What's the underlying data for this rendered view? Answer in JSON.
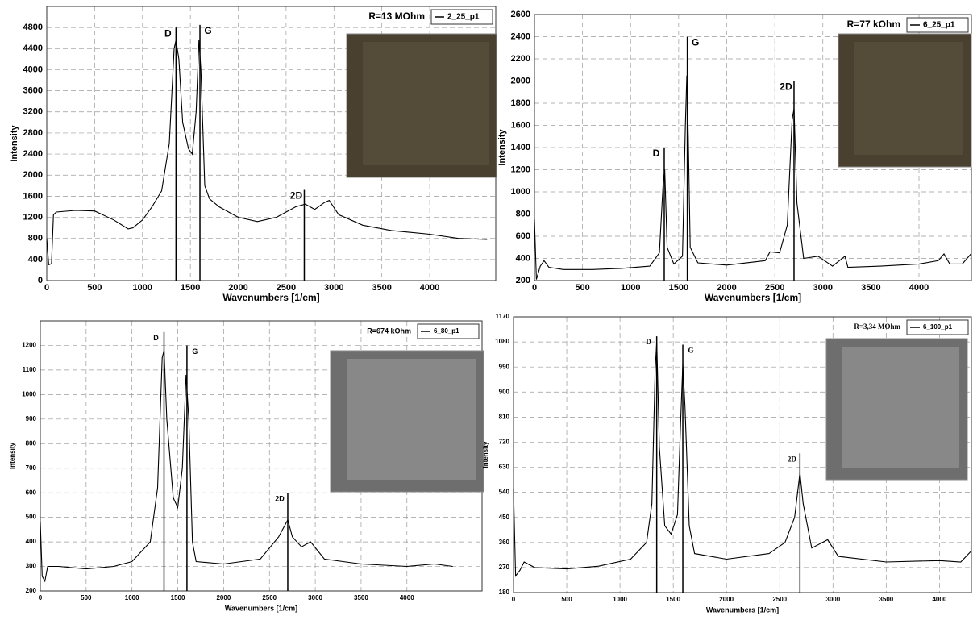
{
  "chart_data": [
    {
      "type": "line",
      "xlabel": "Wavenumbers [1/cm]",
      "ylabel": "Intensity",
      "note": "R=13 MOhm",
      "xlim": [
        0,
        4690
      ],
      "xticks": [
        0,
        500,
        1000,
        1500,
        2000,
        2500,
        3000,
        3500,
        4000
      ],
      "ylim": [
        0,
        5200
      ],
      "yticks": [
        0,
        400,
        800,
        1200,
        1600,
        2000,
        2400,
        2800,
        3200,
        3600,
        4000,
        4400,
        4800
      ],
      "grid": true,
      "x": [
        0,
        20,
        50,
        70,
        100,
        300,
        500,
        700,
        850,
        900,
        1000,
        1100,
        1200,
        1280,
        1330,
        1350,
        1380,
        1420,
        1480,
        1520,
        1560,
        1590,
        1610,
        1650,
        1700,
        1800,
        2000,
        2200,
        2400,
        2600,
        2700,
        2800,
        2900,
        2950,
        3050,
        3300,
        3600,
        4000,
        4300,
        4600
      ],
      "series": [
        {
          "name": "2_25_p1",
          "color": "#000000",
          "values": [
            800,
            300,
            320,
            1250,
            1300,
            1330,
            1320,
            1150,
            980,
            1000,
            1150,
            1400,
            1700,
            2600,
            4400,
            4560,
            4200,
            3000,
            2500,
            2400,
            3200,
            4560,
            4000,
            1800,
            1550,
            1400,
            1200,
            1120,
            1200,
            1400,
            1450,
            1350,
            1480,
            1520,
            1250,
            1050,
            950,
            880,
            800,
            780
          ]
        }
      ],
      "annotations": [
        {
          "text": "D",
          "x": 1350,
          "y": 4800
        },
        {
          "text": "G",
          "x": 1600,
          "y": 4850
        },
        {
          "text": "2D",
          "x": 2690,
          "y": 1720
        }
      ]
    },
    {
      "type": "line",
      "xlabel": "Wavenumbers [1/cm]",
      "ylabel": "Intensity",
      "note": "R=77 kOhm",
      "xlim": [
        0,
        4545
      ],
      "xticks": [
        0,
        500,
        1000,
        1500,
        2000,
        2500,
        3000,
        3500,
        4000
      ],
      "ylim": [
        200,
        2600
      ],
      "yticks": [
        200,
        400,
        600,
        800,
        1000,
        1200,
        1400,
        1600,
        1800,
        2000,
        2200,
        2400,
        2600
      ],
      "grid": true,
      "x": [
        0,
        20,
        60,
        100,
        150,
        300,
        600,
        900,
        1200,
        1300,
        1340,
        1355,
        1380,
        1450,
        1540,
        1570,
        1585,
        1600,
        1620,
        1700,
        2000,
        2400,
        2450,
        2550,
        2630,
        2680,
        2700,
        2730,
        2800,
        2950,
        3100,
        3230,
        3260,
        3600,
        4000,
        4200,
        4260,
        4320,
        4450,
        4540
      ],
      "series": [
        {
          "name": "6_25_p1",
          "color": "#000000",
          "values": [
            750,
            210,
            330,
            380,
            320,
            300,
            300,
            310,
            330,
            450,
            1100,
            1200,
            500,
            350,
            420,
            1600,
            2050,
            1500,
            500,
            360,
            340,
            380,
            460,
            450,
            700,
            1650,
            1750,
            900,
            400,
            420,
            330,
            420,
            320,
            330,
            350,
            380,
            440,
            350,
            350,
            440
          ]
        }
      ],
      "annotations": [
        {
          "text": "D",
          "x": 1350,
          "y": 1400
        },
        {
          "text": "G",
          "x": 1590,
          "y": 2400
        },
        {
          "text": "2D",
          "x": 2700,
          "y": 2000
        }
      ]
    },
    {
      "type": "line",
      "xlabel": "Wavenumbers [1/cm]",
      "ylabel": "Intensity",
      "note": "R=674 kOhm",
      "xlim": [
        0,
        4820
      ],
      "xticks": [
        0,
        500,
        1000,
        1500,
        2000,
        2500,
        3000,
        3500,
        4000
      ],
      "ylim": [
        200,
        1300
      ],
      "yticks": [
        200,
        300,
        400,
        500,
        600,
        700,
        800,
        900,
        1000,
        1100,
        1200
      ],
      "grid": true,
      "x": [
        0,
        20,
        50,
        80,
        200,
        500,
        800,
        1000,
        1200,
        1280,
        1330,
        1350,
        1380,
        1450,
        1500,
        1550,
        1590,
        1620,
        1660,
        1700,
        2000,
        2400,
        2600,
        2700,
        2750,
        2850,
        2950,
        3100,
        3500,
        4000,
        4300,
        4500
      ],
      "series": [
        {
          "name": "6_80_p1",
          "color": "#000000",
          "values": [
            480,
            260,
            240,
            300,
            300,
            290,
            300,
            320,
            400,
            620,
            1150,
            1180,
            900,
            580,
            540,
            700,
            1080,
            900,
            400,
            320,
            310,
            330,
            420,
            490,
            420,
            380,
            400,
            330,
            310,
            300,
            310,
            300
          ]
        }
      ],
      "annotations": [
        {
          "text": "D",
          "x": 1350,
          "y": 1255
        },
        {
          "text": "G",
          "x": 1600,
          "y": 1200
        },
        {
          "text": "2D",
          "x": 2700,
          "y": 600
        }
      ]
    },
    {
      "type": "line",
      "xlabel": "Wavenumbers [1/cm]",
      "ylabel": "Intensity",
      "note": "R=3,34 MOhm",
      "xlim": [
        0,
        4300
      ],
      "xticks": [
        0,
        500,
        1000,
        1500,
        2000,
        2500,
        3000,
        3500,
        4000
      ],
      "ylim": [
        180,
        1170
      ],
      "yticks": [
        180,
        270,
        360,
        450,
        540,
        630,
        720,
        810,
        900,
        990,
        1080,
        1170
      ],
      "grid": true,
      "x": [
        0,
        20,
        60,
        100,
        200,
        500,
        800,
        1100,
        1250,
        1300,
        1330,
        1345,
        1370,
        1420,
        1480,
        1540,
        1570,
        1590,
        1610,
        1650,
        1700,
        2000,
        2400,
        2550,
        2640,
        2690,
        2720,
        2800,
        2950,
        3050,
        3500,
        4000,
        4200,
        4300
      ],
      "series": [
        {
          "name": "6_100_p1",
          "color": "#000000",
          "values": [
            550,
            240,
            260,
            290,
            270,
            265,
            275,
            300,
            360,
            500,
            980,
            1080,
            700,
            420,
            390,
            460,
            800,
            1000,
            850,
            420,
            320,
            300,
            320,
            360,
            450,
            610,
            500,
            340,
            370,
            310,
            290,
            295,
            290,
            330
          ]
        }
      ],
      "annotations": [
        {
          "text": "D",
          "x": 1345,
          "y": 1100
        },
        {
          "text": "G",
          "x": 1590,
          "y": 1070
        },
        {
          "text": "2D",
          "x": 2690,
          "y": 680
        }
      ]
    }
  ]
}
